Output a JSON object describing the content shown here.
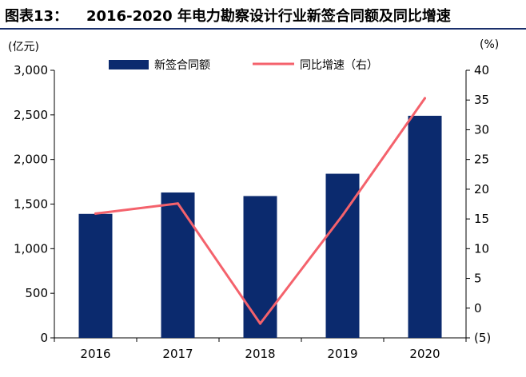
{
  "header": {
    "prefix": "图表13：",
    "title": "2016-2020 年电力勘察设计行业新签合同额及同比增速"
  },
  "chart_data": {
    "type": "bar",
    "categories": [
      "2016",
      "2017",
      "2018",
      "2019",
      "2020"
    ],
    "series": [
      {
        "name": "新签合同额",
        "type": "bar",
        "axis": "left",
        "values": [
          1390,
          1630,
          1590,
          1840,
          2490
        ],
        "color": "#0b2a6e"
      },
      {
        "name": "同比增速（右）",
        "type": "line",
        "axis": "right",
        "values": [
          15.9,
          17.6,
          -2.6,
          15.6,
          35.3
        ],
        "color": "#f4626c"
      }
    ],
    "ylabel": "(亿元)",
    "y2label": "(%)",
    "ylim": [
      0,
      3000
    ],
    "y2lim": [
      -5,
      40
    ],
    "yticks": [
      "0",
      "500",
      "1,000",
      "1,500",
      "2,000",
      "2,500",
      "3,000"
    ],
    "y2ticks": [
      "(5)",
      "0",
      "5",
      "10",
      "15",
      "20",
      "25",
      "30",
      "35",
      "40"
    ],
    "legend_position": "top",
    "grid": false
  }
}
